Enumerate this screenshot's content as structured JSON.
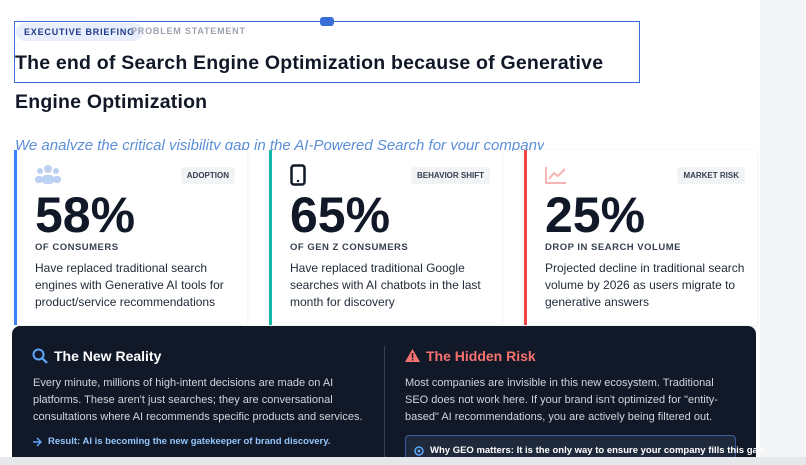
{
  "header": {
    "tags": [
      "EXECUTIVE BRIEFING",
      "PROBLEM STATEMENT"
    ],
    "title": "The end of Search Engine Optimization because of Generative Engine Optimization",
    "subtitle": "We analyze the critical visibility gap in the AI-Powered Search for your company"
  },
  "stats": [
    {
      "tag": "ADOPTION",
      "value": "58%",
      "label": "OF CONSUMERS",
      "text": "Have replaced traditional search engines with Generative AI tools for product/service recommendations"
    },
    {
      "tag": "BEHAVIOR SHIFT",
      "value": "65%",
      "label": "OF GEN Z CONSUMERS",
      "text": "Have replaced traditional Google searches with AI chatbots in the last month for discovery"
    },
    {
      "tag": "MARKET RISK",
      "value": "25%",
      "label": "DROP IN SEARCH VOLUME",
      "text": "Projected decline in traditional search volume by 2026 as users migrate to generative answers"
    }
  ],
  "panels": [
    {
      "title": "The New Reality",
      "body": "Every minute, millions of high-intent decisions are made on AI platforms. These aren't just searches; they are conversational consultations where AI recommends specific products and services.",
      "note": "Result: AI is becoming the new gatekeeper of brand discovery."
    },
    {
      "title": "The Hidden Risk",
      "body": "Most companies are invisible in this new ecosystem. Traditional SEO does not work here. If your brand isn't optimized for \"entity-based\" AI recommendations, you are actively being filtered out.",
      "note": "Why GEO matters: It is the only way to ensure your company fills this gap"
    }
  ]
}
